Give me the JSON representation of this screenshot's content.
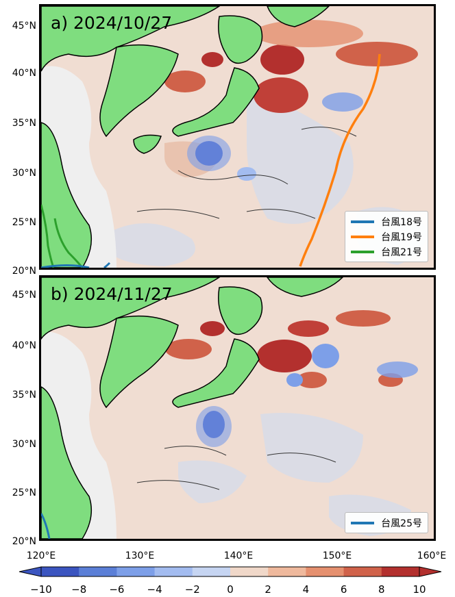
{
  "panels": [
    {
      "label": "a) 2024/10/27",
      "legend": [
        {
          "name": "台風18号",
          "color": "#1f77b4"
        },
        {
          "name": "台風19号",
          "color": "#ff7f0e"
        },
        {
          "name": "台風21号",
          "color": "#2ca02c"
        }
      ]
    },
    {
      "label": "b) 2024/11/27",
      "legend": [
        {
          "name": "台風25号",
          "color": "#1f77b4"
        }
      ]
    }
  ],
  "lat_ticks": [
    "45°N",
    "40°N",
    "35°N",
    "30°N",
    "25°N",
    "20°N"
  ],
  "lon_ticks": [
    "120°E",
    "130°E",
    "140°E",
    "150°E",
    "160°E"
  ],
  "colorbar": {
    "ticks": [
      "−10",
      "−8",
      "−6",
      "−4",
      "−2",
      "0",
      "2",
      "4",
      "6",
      "8",
      "10"
    ],
    "range": [
      -10,
      10
    ],
    "colors": [
      "#3b55c0",
      "#5b7fd7",
      "#7d9fe8",
      "#a3bcf0",
      "#c6d5f2",
      "#e2e6ef",
      "#f0d8c9",
      "#efb99d",
      "#e5906f",
      "#d0624a",
      "#b3302e"
    ]
  },
  "map_extent": {
    "lon": [
      120,
      160
    ],
    "lat": [
      20,
      47
    ]
  },
  "land_color": "#7fdd7f",
  "continent_shade": "#efefef"
}
